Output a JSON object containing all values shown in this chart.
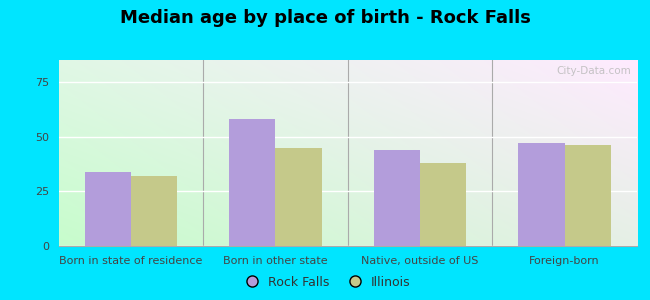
{
  "title": "Median age by place of birth - Rock Falls",
  "categories": [
    "Born in state of residence",
    "Born in other state",
    "Native, outside of US",
    "Foreign-born"
  ],
  "rock_falls": [
    34,
    58,
    44,
    47
  ],
  "illinois": [
    32,
    45,
    38,
    46
  ],
  "rock_falls_color": "#b39ddb",
  "illinois_color": "#c5c98a",
  "ylim": [
    0,
    85
  ],
  "yticks": [
    0,
    25,
    50,
    75
  ],
  "legend_labels": [
    "Rock Falls",
    "Illinois"
  ],
  "bar_width": 0.32,
  "background_color": "#00e5ff",
  "title_fontsize": 13,
  "tick_fontsize": 8,
  "watermark": "City-Data.com",
  "gradient_top": "#f8fffa",
  "gradient_bottom": "#d4edda",
  "gradient_left": "#c8f0d8",
  "gradient_right": "#f8fffa"
}
